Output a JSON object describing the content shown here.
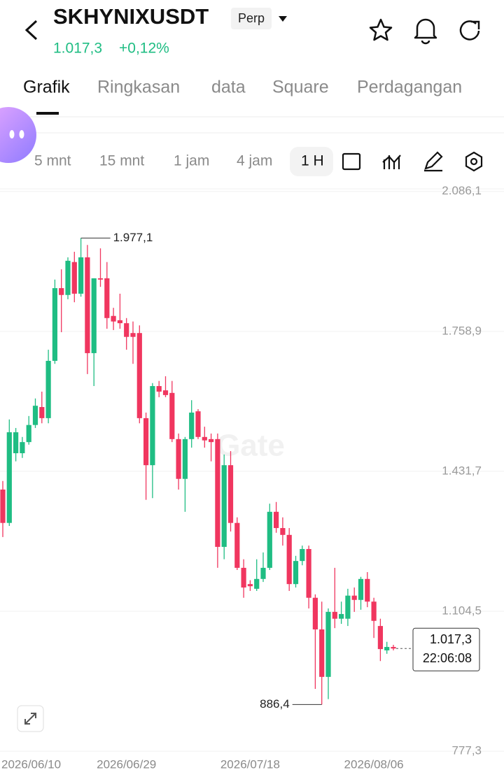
{
  "header": {
    "symbol": "SKHYNIXUSDT",
    "badge": "Perp",
    "price": "1.017,3",
    "change": "+0,12%"
  },
  "tabs": [
    "Grafik",
    "Ringkasan",
    "data",
    "Square",
    "Perdagangan"
  ],
  "intervals": [
    "5 mnt",
    "15 mnt",
    "1 jam",
    "4 jam",
    "1 H"
  ],
  "chart_data": {
    "type": "candlestick",
    "watermark": "Gate",
    "up_color": "#1fbd83",
    "down_color": "#f0365f",
    "categories": [
      "2026/06/10",
      null,
      null,
      null,
      null,
      null,
      null,
      null,
      null,
      null,
      null,
      null,
      null,
      null,
      null,
      null,
      null,
      null,
      null,
      "2026/06/29",
      null,
      null,
      null,
      null,
      null,
      null,
      null,
      null,
      null,
      null,
      null,
      null,
      null,
      null,
      null,
      null,
      null,
      null,
      "2026/07/18",
      null,
      null,
      null,
      null,
      null,
      null,
      null,
      null,
      null,
      null,
      null,
      null,
      null,
      null,
      null,
      null,
      null,
      null,
      "2026/08/06",
      null,
      null,
      null
    ],
    "open": [
      1389,
      1311,
      1474,
      1474,
      1500,
      1540,
      1582,
      1556,
      1690,
      1860,
      1844,
      1921,
      1847,
      1932,
      1708,
      1883,
      1883,
      1795,
      1785,
      1778,
      1755,
      1755,
      1556,
      1446,
      1631,
      1621,
      1615,
      1507,
      1414,
      1507,
      1572,
      1512,
      1507,
      1507,
      1255,
      1446,
      1311,
      1206,
      1168,
      1157,
      1180,
      1206,
      1337,
      1299,
      1283,
      1168,
      1222,
      1250,
      1136,
      1062,
      951,
      1103,
      1087,
      1087,
      1141,
      1131,
      1180,
      1127,
      1070,
      1013,
      1021
    ],
    "high": [
      1409,
      1553,
      1533,
      1512,
      1561,
      1602,
      1618,
      1716,
      1880,
      1904,
      1932,
      1945,
      1977.1,
      1961,
      1883,
      1953,
      1921,
      1814,
      1847,
      1790,
      1782,
      1773,
      1569,
      1638,
      1643,
      1654,
      1643,
      1520,
      1512,
      1598,
      1577,
      1536,
      1520,
      1520,
      1471,
      1479,
      1324,
      1226,
      1177,
      1226,
      1242,
      1356,
      1360,
      1324,
      1299,
      1234,
      1258,
      1258,
      1144,
      1127,
      1111,
      1206,
      1127,
      1157,
      1160,
      1185,
      1196,
      1136,
      1087,
      1033,
      1026
    ],
    "low": [
      1278,
      1304,
      1455,
      1463,
      1494,
      1533,
      1544,
      1544,
      1683,
      1757,
      1834,
      1827,
      1840,
      1659,
      1631,
      1863,
      1765,
      1762,
      1765,
      1716,
      1683,
      1544,
      1365,
      1369,
      1605,
      1605,
      1500,
      1389,
      1337,
      1487,
      1507,
      1487,
      1455,
      1206,
      1226,
      1291,
      1201,
      1136,
      1152,
      1152,
      1173,
      1201,
      1288,
      1258,
      1152,
      1160,
      1212,
      1111,
      923,
      886.4,
      899,
      1065,
      1075,
      1070,
      1103,
      1108,
      1114,
      1042,
      988,
      1005,
      1013
    ],
    "close": [
      1311,
      1523,
      1523,
      1500,
      1540,
      1585,
      1556,
      1690,
      1860,
      1844,
      1924,
      1847,
      1932,
      1708,
      1883,
      1880,
      1790,
      1782,
      1778,
      1746,
      1746,
      1556,
      1446,
      1631,
      1618,
      1610,
      1507,
      1414,
      1507,
      1569,
      1512,
      1504,
      1500,
      1255,
      1446,
      1311,
      1206,
      1160,
      1163,
      1180,
      1206,
      1337,
      1299,
      1283,
      1168,
      1222,
      1250,
      1136,
      1062,
      951,
      1103,
      1087,
      1098,
      1141,
      1131,
      1180,
      1127,
      1082,
      1016,
      1021,
      1017.3
    ],
    "ylim": [
      767.6,
      2092.2
    ],
    "yticks": [
      {
        "value": 777.3,
        "label": "777,3"
      },
      {
        "value": 1104.5,
        "label": "1.104,5"
      },
      {
        "value": 1431.7,
        "label": "1.431,7"
      },
      {
        "value": 1758.9,
        "label": "1.758,9"
      },
      {
        "value": 2086.1,
        "label": "2.086,1"
      }
    ],
    "grid": true,
    "annotations": [
      {
        "value": 1977.1,
        "label": "1.977,1"
      },
      {
        "value": 886.4,
        "label": "886,4"
      }
    ],
    "last_price": {
      "value": 1017.3,
      "label": "1.017,3",
      "time": "22:06:08"
    }
  }
}
